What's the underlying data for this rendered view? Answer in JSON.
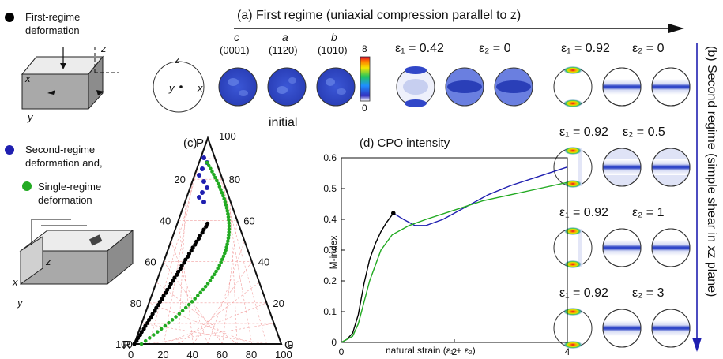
{
  "legend": {
    "first_regime": [
      "First-regime",
      "deformation"
    ],
    "second_regime": [
      "Second-regime",
      "deformation and,"
    ],
    "single_regime": [
      "Single-regime",
      "deformation"
    ],
    "colors": {
      "first": "#000000",
      "second": "#1f1fb0",
      "single": "#22aa22"
    }
  },
  "axes_box1": {
    "z": "z",
    "x": "x",
    "y": "y"
  },
  "axes_box2": {
    "z": "z",
    "x": "x",
    "y": "y"
  },
  "reference_circle": {
    "z": "z",
    "y": "y",
    "x": "x"
  },
  "panel_a": {
    "title": "(a) First regime (uniaxial compression parallel to z)",
    "columns": [
      {
        "letter": "c",
        "index": "(0001)"
      },
      {
        "letter": "a",
        "index": "(1120)"
      },
      {
        "letter": "b",
        "index": "(1010)"
      }
    ],
    "initial_label": "initial",
    "colorbar": {
      "max": "8",
      "min": "0"
    },
    "strain1": {
      "e1": "ε₁ = 0.42",
      "e2": "ε₂ = 0"
    },
    "strain2": {
      "e1": "ε₁ = 0.92",
      "e2": "ε₂ = 0"
    }
  },
  "panel_b": {
    "title": "(b) Second regime (simple shear in xz plane)",
    "rows": [
      {
        "e1": "ε₁ = 0.92",
        "e2": "ε₂ = 0.5"
      },
      {
        "e1": "ε₁ = 0.92",
        "e2": "ε₂ = 1"
      },
      {
        "e1": "ε₁ = 0.92",
        "e2": "ε₂ = 3"
      }
    ]
  },
  "panel_c": {
    "label": "(c)",
    "vertices": {
      "P": "P",
      "R": "R",
      "G": "G"
    },
    "left_ticks": [
      "0",
      "20",
      "40",
      "60",
      "80",
      "100"
    ],
    "right_ticks": [
      "100",
      "80",
      "60",
      "40",
      "20",
      "0"
    ],
    "bottom_ticks": [
      "0",
      "20",
      "40",
      "60",
      "80",
      "100"
    ]
  },
  "chart_data": {
    "type": "line",
    "title": "(d) CPO intensity",
    "xlabel": "natural strain (ε₁ + ε₂)",
    "ylabel": "M-index",
    "xlim": [
      0,
      4
    ],
    "ylim": [
      0,
      0.6
    ],
    "x_ticks": [
      "0",
      "2",
      "4"
    ],
    "y_ticks": [
      "0",
      "0.1",
      "0.2",
      "0.3",
      "0.4",
      "0.5",
      "0.6"
    ],
    "series": [
      {
        "color": "#000000",
        "x": [
          0,
          0.1,
          0.2,
          0.3,
          0.4,
          0.5,
          0.6,
          0.7,
          0.8,
          0.92
        ],
        "y": [
          0,
          0.01,
          0.03,
          0.09,
          0.19,
          0.27,
          0.32,
          0.36,
          0.39,
          0.42
        ]
      },
      {
        "color": "#1f1fb0",
        "x": [
          0.92,
          1.1,
          1.3,
          1.5,
          1.8,
          2.2,
          2.6,
          3.0,
          3.5,
          4.0
        ],
        "y": [
          0.42,
          0.4,
          0.38,
          0.38,
          0.4,
          0.44,
          0.48,
          0.51,
          0.54,
          0.57
        ]
      },
      {
        "color": "#22aa22",
        "x": [
          0,
          0.1,
          0.2,
          0.3,
          0.5,
          0.7,
          0.9,
          1.2,
          1.5,
          2.0,
          2.5,
          3.0,
          3.5,
          4.0
        ],
        "y": [
          0,
          0.01,
          0.02,
          0.06,
          0.2,
          0.3,
          0.35,
          0.38,
          0.4,
          0.43,
          0.46,
          0.48,
          0.5,
          0.52
        ]
      }
    ],
    "marker": {
      "x": 0.92,
      "y": 0.42
    }
  }
}
